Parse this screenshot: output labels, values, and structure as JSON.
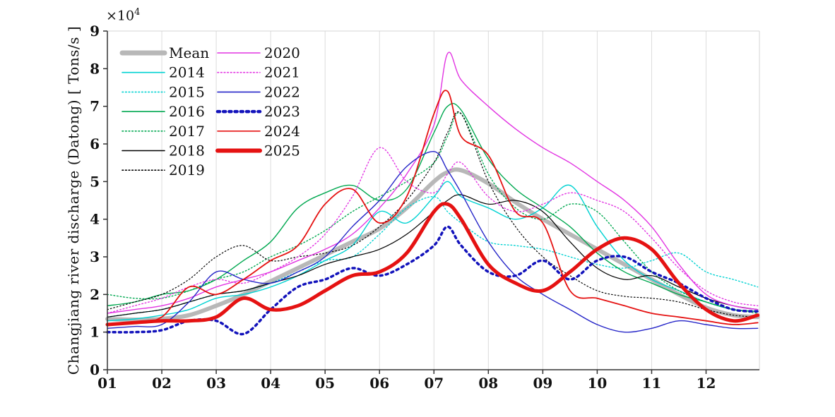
{
  "chart_data": {
    "type": "line",
    "title": "",
    "xlabel": "",
    "ylabel": "Changjiang river discharge (Datong) [ Tons/s ]",
    "exponent_base": "×10",
    "exponent_power": "4",
    "xlim": [
      1,
      12.98
    ],
    "ylim": [
      0,
      9
    ],
    "x_tick_labels": [
      "01",
      "02",
      "03",
      "04",
      "05",
      "06",
      "07",
      "08",
      "09",
      "10",
      "11",
      "12"
    ],
    "y_tick_labels": [
      "0",
      "1",
      "2",
      "3",
      "4",
      "5",
      "6",
      "7",
      "8",
      "9"
    ],
    "grid": "vertical",
    "legend_position": "top-left",
    "legend_columns": 2,
    "colors": {
      "mean": "#b8b8b8",
      "cyan": "#00d2d2",
      "green": "#00a850",
      "black": "#000000",
      "magenta": "#e234e2",
      "blue": "#2525c8",
      "blue_dark": "#1212bb",
      "red": "#e51212",
      "grid": "#dcdcdc",
      "axis": "#333333"
    },
    "x": [
      1,
      1.5,
      2,
      2.5,
      3,
      3.5,
      4,
      4.5,
      5,
      5.5,
      6,
      6.5,
      7,
      7.25,
      7.5,
      8,
      8.5,
      9,
      9.5,
      10,
      10.5,
      11,
      11.5,
      12,
      12.5,
      12.95
    ],
    "series": [
      {
        "name": "Mean",
        "color": "#b8b8b8",
        "style": "solid",
        "width": 6,
        "values": [
          1.35,
          1.33,
          1.35,
          1.45,
          1.7,
          2.0,
          2.35,
          2.7,
          3.05,
          3.4,
          3.75,
          4.3,
          5.0,
          5.25,
          5.3,
          4.95,
          4.45,
          4.0,
          3.6,
          3.2,
          2.8,
          2.4,
          2.0,
          1.65,
          1.45,
          1.4
        ]
      },
      {
        "name": "2014",
        "color": "#00d2d2",
        "style": "solid",
        "width": 1.4,
        "values": [
          1.3,
          1.35,
          1.45,
          1.6,
          1.9,
          2.0,
          2.2,
          2.5,
          2.9,
          3.3,
          4.2,
          3.9,
          4.6,
          5.0,
          4.6,
          4.3,
          4.0,
          4.3,
          4.9,
          3.8,
          2.9,
          2.4,
          2.1,
          1.8,
          1.6,
          1.55
        ]
      },
      {
        "name": "2015",
        "color": "#00d2d2",
        "style": "dotted",
        "width": 1.4,
        "values": [
          1.4,
          1.5,
          1.6,
          1.8,
          2.0,
          2.1,
          2.3,
          2.6,
          2.9,
          3.0,
          3.6,
          4.3,
          4.6,
          4.2,
          3.9,
          3.4,
          3.3,
          3.2,
          3.0,
          2.8,
          2.7,
          2.9,
          3.1,
          2.6,
          2.4,
          2.2
        ]
      },
      {
        "name": "2016",
        "color": "#00a850",
        "style": "solid",
        "width": 1.4,
        "values": [
          1.7,
          1.8,
          2.0,
          2.1,
          2.4,
          2.9,
          3.4,
          4.3,
          4.7,
          4.9,
          4.5,
          4.8,
          6.3,
          7.0,
          6.9,
          5.6,
          4.8,
          4.3,
          3.8,
          3.1,
          2.6,
          2.3,
          2.0,
          1.8,
          1.6,
          1.55
        ]
      },
      {
        "name": "2017",
        "color": "#00a850",
        "style": "dotted",
        "width": 1.4,
        "values": [
          2.0,
          1.9,
          1.9,
          2.1,
          2.4,
          2.6,
          3.0,
          3.3,
          3.7,
          4.2,
          4.6,
          5.0,
          5.5,
          6.2,
          6.8,
          5.2,
          4.3,
          4.0,
          4.4,
          4.2,
          3.4,
          2.6,
          2.1,
          1.8,
          1.6,
          1.5
        ]
      },
      {
        "name": "2018",
        "color": "#000000",
        "style": "solid",
        "width": 1.2,
        "values": [
          1.4,
          1.5,
          1.6,
          1.8,
          2.0,
          2.1,
          2.3,
          2.5,
          2.8,
          3.0,
          3.2,
          3.6,
          4.2,
          4.5,
          4.65,
          4.4,
          4.5,
          4.2,
          3.4,
          2.7,
          2.4,
          2.5,
          2.2,
          1.9,
          1.7,
          1.6
        ]
      },
      {
        "name": "2019",
        "color": "#000000",
        "style": "dotted",
        "width": 1.2,
        "values": [
          1.6,
          1.8,
          2.0,
          2.4,
          3.0,
          3.3,
          2.9,
          3.0,
          3.1,
          3.3,
          3.8,
          4.5,
          5.5,
          6.3,
          6.8,
          5.0,
          3.8,
          3.0,
          2.5,
          2.1,
          1.95,
          1.9,
          1.8,
          1.6,
          1.45,
          1.4
        ]
      },
      {
        "name": "2020",
        "color": "#e234e2",
        "style": "solid",
        "width": 1.4,
        "values": [
          1.5,
          1.6,
          1.7,
          1.9,
          2.2,
          2.4,
          2.6,
          2.9,
          3.2,
          3.6,
          4.3,
          5.2,
          6.5,
          8.4,
          7.7,
          7.0,
          6.4,
          5.9,
          5.5,
          5.0,
          4.5,
          3.8,
          2.8,
          2.0,
          1.7,
          1.6
        ]
      },
      {
        "name": "2021",
        "color": "#e234e2",
        "style": "dotted",
        "width": 1.4,
        "values": [
          1.5,
          1.7,
          1.9,
          2.2,
          2.4,
          2.3,
          2.6,
          3.0,
          3.6,
          4.6,
          5.9,
          5.0,
          4.7,
          5.2,
          5.5,
          4.6,
          4.2,
          4.4,
          4.7,
          4.5,
          4.2,
          3.5,
          2.7,
          2.1,
          1.8,
          1.7
        ]
      },
      {
        "name": "2022",
        "color": "#2525c8",
        "style": "solid",
        "width": 1.4,
        "values": [
          1.1,
          1.15,
          1.2,
          1.8,
          2.6,
          2.4,
          2.3,
          2.6,
          3.0,
          3.8,
          4.5,
          5.4,
          5.8,
          5.3,
          4.7,
          3.4,
          2.5,
          2.0,
          1.6,
          1.2,
          1.0,
          1.1,
          1.3,
          1.2,
          1.1,
          1.1
        ]
      },
      {
        "name": "2023",
        "color": "#1212bb",
        "style": "dotted",
        "width": 3.5,
        "values": [
          1.0,
          1.0,
          1.05,
          1.3,
          1.3,
          0.95,
          1.6,
          2.2,
          2.4,
          2.7,
          2.5,
          2.8,
          3.3,
          3.8,
          3.3,
          2.6,
          2.5,
          2.9,
          2.4,
          2.9,
          3.0,
          2.6,
          2.3,
          1.9,
          1.6,
          1.55
        ]
      },
      {
        "name": "2024",
        "color": "#e51212",
        "style": "solid",
        "width": 1.8,
        "values": [
          1.2,
          1.25,
          1.4,
          2.2,
          2.0,
          2.4,
          2.9,
          3.3,
          4.4,
          4.8,
          3.9,
          4.6,
          6.8,
          7.4,
          6.2,
          5.7,
          4.2,
          3.9,
          2.1,
          1.9,
          1.7,
          1.5,
          1.4,
          1.3,
          1.2,
          1.25
        ]
      },
      {
        "name": "2025",
        "color": "#e51212",
        "style": "solid",
        "width": 5,
        "values": [
          1.2,
          1.25,
          1.3,
          1.3,
          1.4,
          1.9,
          1.6,
          1.7,
          2.1,
          2.5,
          2.6,
          3.1,
          4.2,
          4.4,
          4.0,
          2.8,
          2.3,
          2.1,
          2.6,
          3.2,
          3.5,
          3.2,
          2.3,
          1.6,
          1.3,
          1.45
        ]
      }
    ]
  }
}
